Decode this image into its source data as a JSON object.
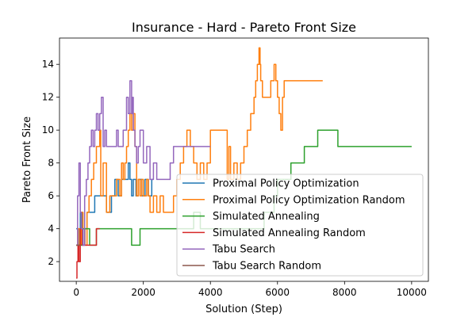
{
  "chart_data": {
    "type": "line",
    "title": "Insurance - Hard - Pareto Front Size",
    "xlabel": "Solution (Step)",
    "ylabel": "Pareto Front Size",
    "xlim": [
      -500,
      10500
    ],
    "ylim": [
      0.8,
      15.6
    ],
    "xticks": [
      0,
      2000,
      4000,
      6000,
      8000,
      10000
    ],
    "yticks": [
      2,
      4,
      6,
      8,
      10,
      12,
      14
    ],
    "grid": false,
    "legend_position": "lower-right",
    "series": [
      {
        "name": "Proximal Policy Optimization",
        "color": "#1f77b4",
        "step": true,
        "x": [
          0,
          60,
          120,
          180,
          250,
          320,
          400,
          550,
          650,
          800,
          900,
          1050,
          1150,
          1250,
          1350,
          1500,
          1550,
          1600,
          1650,
          1700,
          1780,
          1850,
          1950,
          2050,
          2150,
          2250,
          2300
        ],
        "y": [
          4,
          3,
          5,
          3,
          4,
          5,
          5,
          6,
          6,
          6,
          5,
          6,
          7,
          6,
          7,
          7,
          8,
          7,
          6,
          7,
          6,
          7,
          6,
          7,
          6,
          7,
          7
        ]
      },
      {
        "name": "Proximal Policy Optimization Random",
        "color": "#ff7f0e",
        "step": true,
        "x": [
          0,
          50,
          100,
          150,
          200,
          260,
          320,
          380,
          450,
          520,
          600,
          680,
          700,
          730,
          800,
          900,
          1000,
          1100,
          1200,
          1300,
          1350,
          1400,
          1450,
          1500,
          1550,
          1600,
          1650,
          1700,
          1750,
          1800,
          1850,
          1900,
          1950,
          2000,
          2100,
          2150,
          2200,
          2300,
          2400,
          2500,
          2600,
          2800,
          2900,
          3000,
          3100,
          3200,
          3300,
          3400,
          3500,
          3600,
          3700,
          3800,
          3900,
          4000,
          4500,
          4550,
          4600,
          4700,
          4800,
          4900,
          5000,
          5100,
          5200,
          5300,
          5350,
          5400,
          5450,
          5480,
          5500,
          5550,
          5600,
          5700,
          5800,
          5900,
          5950,
          6000,
          6050,
          6100,
          6150,
          6200,
          6300,
          7350
        ],
        "y": [
          3,
          4,
          3,
          5,
          4,
          3,
          5,
          6,
          7,
          8,
          9,
          9,
          10,
          6,
          8,
          5,
          6,
          6,
          7,
          6,
          8,
          7,
          8,
          9,
          10,
          11,
          10,
          11,
          9,
          6,
          7,
          6,
          7,
          6,
          7,
          6,
          5,
          6,
          5,
          6,
          5,
          5,
          6,
          7,
          8,
          9,
          10,
          9,
          8,
          7,
          8,
          7,
          8,
          10,
          7,
          9,
          7,
          8,
          7,
          8,
          9,
          10,
          11,
          12,
          13,
          14,
          15,
          14,
          13,
          12,
          12,
          12,
          13,
          14,
          13,
          12,
          11,
          10,
          12,
          13,
          13,
          13
        ],
        "comment": ""
      },
      {
        "name": "Simulated Annealing",
        "color": "#2ca02c",
        "step": true,
        "x": [
          0,
          200,
          400,
          600,
          1000,
          1650,
          1900,
          2000,
          3000,
          3500,
          3700,
          4000,
          5000,
          5200,
          5600,
          5900,
          6000,
          6200,
          6350,
          6400,
          6800,
          7200,
          7800,
          8500,
          10000
        ],
        "y": [
          3,
          4,
          3,
          4,
          4,
          3,
          4,
          4,
          4,
          5,
          4,
          4,
          4,
          4,
          5,
          6,
          7,
          7,
          7,
          8,
          9,
          10,
          9,
          9,
          9
        ]
      },
      {
        "name": "Simulated Annealing Random",
        "color": "#d62728",
        "step": true,
        "x": [
          0,
          20,
          50,
          80,
          120,
          180,
          250,
          350,
          450,
          550,
          600,
          700
        ],
        "y": [
          1,
          2,
          3,
          2,
          4,
          3,
          3,
          3,
          3,
          3,
          4,
          4
        ]
      },
      {
        "name": "Tabu Search",
        "color": "#9467bd",
        "step": true,
        "x": [
          0,
          40,
          80,
          120,
          150,
          200,
          250,
          300,
          350,
          400,
          450,
          500,
          550,
          600,
          650,
          700,
          750,
          800,
          850,
          900,
          1000,
          1100,
          1200,
          1250,
          1300,
          1400,
          1500,
          1550,
          1600,
          1650,
          1680,
          1700,
          1750,
          1800,
          1850,
          1900,
          2000,
          2100,
          2200,
          2300,
          2400,
          2600,
          2800,
          2900,
          3000,
          3100,
          3200,
          3300,
          3500,
          3800,
          4000
        ],
        "y": [
          3,
          6,
          8,
          5,
          4,
          3,
          6,
          7,
          8,
          9,
          10,
          9,
          10,
          11,
          10,
          11,
          12,
          9,
          10,
          9,
          9,
          9,
          10,
          9,
          9,
          10,
          12,
          11,
          13,
          11,
          12,
          10,
          9,
          8,
          9,
          10,
          8,
          9,
          7,
          8,
          7,
          7,
          8,
          9,
          9,
          9,
          9,
          9,
          9,
          9,
          9
        ]
      },
      {
        "name": "Tabu Search Random",
        "color": "#8c564b",
        "step": true,
        "x": [
          0,
          100
        ],
        "y": [
          3,
          3
        ]
      }
    ]
  }
}
